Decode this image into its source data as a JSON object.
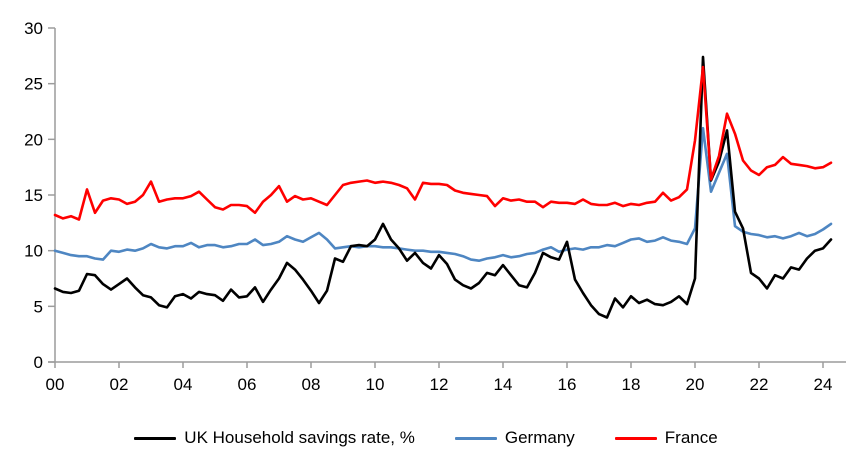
{
  "chart_data": {
    "type": "line",
    "title": "",
    "frequency": "quarterly",
    "x_start_year": 2000,
    "x_step_years": 0.25,
    "x_tick_years": [
      2000,
      2002,
      2004,
      2006,
      2008,
      2010,
      2012,
      2014,
      2016,
      2018,
      2020,
      2022,
      2024
    ],
    "x_tick_labels": [
      "00",
      "02",
      "04",
      "06",
      "08",
      "10",
      "12",
      "14",
      "16",
      "18",
      "20",
      "22",
      "24"
    ],
    "y_ticks": [
      0,
      5,
      10,
      15,
      20,
      25,
      30
    ],
    "y_tick_labels": [
      "0",
      "5",
      "10",
      "15",
      "20",
      "25",
      "30"
    ],
    "ylim": [
      0,
      30
    ],
    "grid": false,
    "legend_position": "bottom",
    "axis_color": "#9C9C9C",
    "series": [
      {
        "name": "UK Household savings rate, %",
        "color": "#000000",
        "values": [
          6.6,
          6.3,
          6.2,
          6.4,
          7.9,
          7.8,
          7.0,
          6.5,
          7.0,
          7.5,
          6.7,
          6.0,
          5.8,
          5.1,
          4.9,
          5.9,
          6.1,
          5.7,
          6.3,
          6.1,
          6.0,
          5.5,
          6.5,
          5.8,
          5.9,
          6.7,
          5.4,
          6.5,
          7.5,
          8.9,
          8.3,
          7.4,
          6.4,
          5.3,
          6.4,
          9.3,
          9.0,
          10.4,
          10.5,
          10.4,
          11.0,
          12.4,
          11.0,
          10.2,
          9.1,
          9.8,
          8.9,
          8.4,
          9.6,
          8.8,
          7.4,
          6.9,
          6.6,
          7.1,
          8.0,
          7.8,
          8.7,
          7.8,
          6.9,
          6.7,
          8.0,
          9.8,
          9.4,
          9.2,
          10.8,
          7.4,
          6.2,
          5.1,
          4.3,
          4.0,
          5.7,
          4.9,
          5.9,
          5.3,
          5.6,
          5.2,
          5.1,
          5.4,
          5.9,
          5.2,
          7.5,
          27.4,
          16.3,
          18.0,
          20.8,
          13.5,
          12.0,
          8.0,
          7.5,
          6.6,
          7.8,
          7.5,
          8.5,
          8.3,
          9.3,
          10.0,
          10.2,
          11.0
        ]
      },
      {
        "name": "Germany",
        "color": "#4E86C2",
        "values": [
          10.0,
          9.8,
          9.6,
          9.5,
          9.5,
          9.3,
          9.2,
          10.0,
          9.9,
          10.1,
          10.0,
          10.2,
          10.6,
          10.3,
          10.2,
          10.4,
          10.4,
          10.7,
          10.3,
          10.5,
          10.5,
          10.3,
          10.4,
          10.6,
          10.6,
          11.0,
          10.5,
          10.6,
          10.8,
          11.3,
          11.0,
          10.8,
          11.2,
          11.6,
          11.0,
          10.2,
          10.3,
          10.4,
          10.3,
          10.4,
          10.4,
          10.3,
          10.3,
          10.2,
          10.1,
          10.0,
          10.0,
          9.9,
          9.9,
          9.8,
          9.7,
          9.5,
          9.2,
          9.1,
          9.3,
          9.4,
          9.6,
          9.4,
          9.5,
          9.7,
          9.8,
          10.1,
          10.3,
          9.9,
          10.1,
          10.2,
          10.1,
          10.3,
          10.3,
          10.5,
          10.4,
          10.7,
          11.0,
          11.1,
          10.8,
          10.9,
          11.2,
          10.9,
          10.8,
          10.6,
          12.0,
          21.0,
          15.3,
          17.0,
          18.7,
          12.2,
          11.7,
          11.5,
          11.4,
          11.2,
          11.3,
          11.1,
          11.3,
          11.6,
          11.3,
          11.5,
          11.9,
          12.4
        ]
      },
      {
        "name": "France",
        "color": "#FF0000",
        "values": [
          13.2,
          12.9,
          13.1,
          12.8,
          15.5,
          13.4,
          14.5,
          14.7,
          14.6,
          14.2,
          14.4,
          15.0,
          16.2,
          14.4,
          14.6,
          14.7,
          14.7,
          14.9,
          15.3,
          14.6,
          13.9,
          13.7,
          14.1,
          14.1,
          14.0,
          13.4,
          14.4,
          15.0,
          15.8,
          14.4,
          14.9,
          14.6,
          14.7,
          14.4,
          14.1,
          15.0,
          15.9,
          16.1,
          16.2,
          16.3,
          16.1,
          16.2,
          16.1,
          15.9,
          15.6,
          14.6,
          16.1,
          16.0,
          16.0,
          15.9,
          15.4,
          15.2,
          15.1,
          15.0,
          14.9,
          14.0,
          14.7,
          14.5,
          14.6,
          14.4,
          14.4,
          13.9,
          14.4,
          14.3,
          14.3,
          14.2,
          14.6,
          14.2,
          14.1,
          14.1,
          14.3,
          14.0,
          14.2,
          14.1,
          14.3,
          14.4,
          15.2,
          14.5,
          14.8,
          15.5,
          19.9,
          26.5,
          16.4,
          18.5,
          22.3,
          20.5,
          18.1,
          17.2,
          16.8,
          17.5,
          17.7,
          18.4,
          17.8,
          17.7,
          17.6,
          17.4,
          17.5,
          17.9
        ]
      }
    ]
  },
  "legend": {
    "items": [
      {
        "label": "UK Household savings rate, %"
      },
      {
        "label": "Germany"
      },
      {
        "label": "France"
      }
    ]
  }
}
